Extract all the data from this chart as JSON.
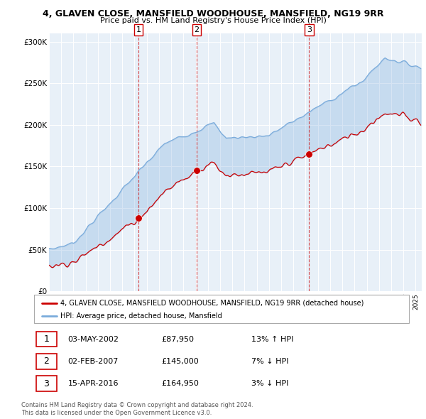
{
  "title1": "4, GLAVEN CLOSE, MANSFIELD WOODHOUSE, MANSFIELD, NG19 9RR",
  "title2": "Price paid vs. HM Land Registry's House Price Index (HPI)",
  "legend_red": "4, GLAVEN CLOSE, MANSFIELD WOODHOUSE, MANSFIELD, NG19 9RR (detached house)",
  "legend_blue": "HPI: Average price, detached house, Mansfield",
  "footnote1": "Contains HM Land Registry data © Crown copyright and database right 2024.",
  "footnote2": "This data is licensed under the Open Government Licence v3.0.",
  "transactions": [
    {
      "num": "1",
      "date": "03-MAY-2002",
      "price": "£87,950",
      "hpi": "13% ↑ HPI"
    },
    {
      "num": "2",
      "date": "02-FEB-2007",
      "price": "£145,000",
      "hpi": "7% ↓ HPI"
    },
    {
      "num": "3",
      "date": "15-APR-2016",
      "price": "£164,950",
      "hpi": "3% ↓ HPI"
    }
  ],
  "sale_dates": [
    2002.33,
    2007.08,
    2016.29
  ],
  "sale_prices": [
    87950,
    145000,
    164950
  ],
  "ylim": [
    0,
    310000
  ],
  "yticks": [
    0,
    50000,
    100000,
    150000,
    200000,
    250000,
    300000
  ],
  "red_color": "#cc0000",
  "blue_color": "#7aabdb",
  "fill_color": "#ddeeff",
  "grid_color": "#cccccc",
  "chart_bg": "#e8f0f8"
}
